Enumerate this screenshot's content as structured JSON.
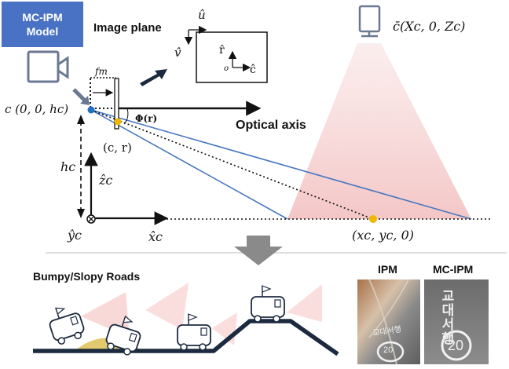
{
  "badge": {
    "line1": "MC-IPM",
    "line2": "Model"
  },
  "labels": {
    "image_plane": "Image plane",
    "u_hat": "û",
    "v_hat": "v̂",
    "r_hat": "r̂",
    "c_hat": "ĉ",
    "origin": "o",
    "fm": "fm",
    "camera_point": "c (0, 0, hc)",
    "phi": "Φ(r)",
    "optical_axis": "Optical axis",
    "pixel": "(c, r)",
    "hc": "hc",
    "z_hat": "ẑc",
    "y_hat": "ŷc",
    "x_hat": "x̂c",
    "ground_point": "(xc, yc, 0)",
    "overhead_camera": "c̄(Xc, 0, Zc)",
    "bumpy_roads": "Bumpy/Slopy Roads",
    "ipm": "IPM",
    "mc_ipm": "MC-IPM",
    "photo_sign_text": "교대서행",
    "photo_speed": "20"
  },
  "colors": {
    "badge": "#4a72c4",
    "ray": "#4a78c0",
    "yellow": "#f2b800",
    "frustum": "#f6d3d3",
    "camera_icon": "#6b7893",
    "road": "#1c2a40",
    "bump": "#e3c96d"
  }
}
